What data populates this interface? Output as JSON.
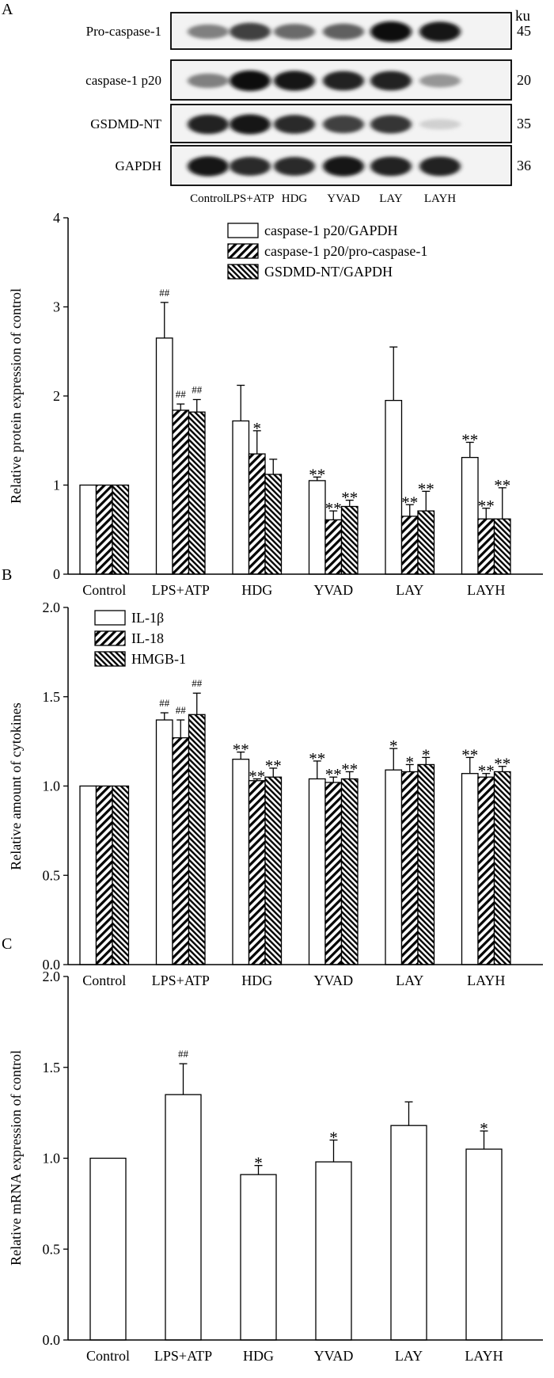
{
  "panels": {
    "A": "A",
    "B": "B",
    "C": "C"
  },
  "blot": {
    "ku_label": "ku",
    "rows": [
      {
        "label": "Pro-caspase-1",
        "ku": "45",
        "intensities": [
          0.45,
          0.75,
          0.55,
          0.6,
          1.0,
          0.95
        ]
      },
      {
        "label": "caspase-1 p20",
        "ku": "20",
        "intensities": [
          0.45,
          1.0,
          0.95,
          0.9,
          0.9,
          0.35
        ]
      },
      {
        "label": "GSDMD-NT",
        "ku": "35",
        "intensities": [
          0.9,
          0.95,
          0.85,
          0.75,
          0.8,
          0.08
        ]
      },
      {
        "label": "GAPDH",
        "ku": "36",
        "intensities": [
          0.95,
          0.85,
          0.85,
          0.95,
          0.9,
          0.9
        ]
      }
    ],
    "lanes": [
      "Control",
      "LPS+ATP",
      "HDG",
      "YVAD",
      "LAY",
      "LAYH"
    ]
  },
  "chart_data": [
    {
      "type": "bar",
      "panel": "A",
      "ylabel": "Relative protein expression of control",
      "ylim": [
        0,
        4
      ],
      "yticks": [
        "0",
        "1",
        "2",
        "3",
        "4"
      ],
      "categories": [
        "Control",
        "LPS+ATP",
        "HDG",
        "YVAD",
        "LAY",
        "LAYH"
      ],
      "series": [
        {
          "name": "caspase-1 p20/GAPDH",
          "pattern": "open",
          "values": [
            1.0,
            2.65,
            1.72,
            1.05,
            1.95,
            1.31
          ],
          "errors": [
            0,
            0.4,
            0.4,
            0.04,
            0.6,
            0.17
          ],
          "marks": [
            "",
            "##",
            "",
            "**",
            "",
            "**"
          ]
        },
        {
          "name": "caspase-1 p20/pro-caspase-1",
          "pattern": "diag-right",
          "values": [
            1.0,
            1.84,
            1.35,
            0.61,
            0.65,
            0.62
          ],
          "errors": [
            0,
            0.07,
            0.26,
            0.1,
            0.13,
            0.12
          ],
          "marks": [
            "",
            "##",
            "*",
            "**",
            "**",
            "**"
          ]
        },
        {
          "name": "GSDMD-NT/GAPDH",
          "pattern": "diag-left",
          "values": [
            1.0,
            1.82,
            1.12,
            0.76,
            0.71,
            0.62
          ],
          "errors": [
            0,
            0.14,
            0.17,
            0.07,
            0.22,
            0.35
          ],
          "marks": [
            "",
            "##",
            "",
            "**",
            "**",
            "**"
          ]
        }
      ]
    },
    {
      "type": "bar",
      "panel": "B",
      "ylabel": "Relative amount of cytokines",
      "ylim": [
        0,
        2.0
      ],
      "yticks": [
        "0.0",
        "0.5",
        "1.0",
        "1.5",
        "2.0"
      ],
      "categories": [
        "Control",
        "LPS+ATP",
        "HDG",
        "YVAD",
        "LAY",
        "LAYH"
      ],
      "series": [
        {
          "name": "IL-1β",
          "pattern": "open",
          "values": [
            1.0,
            1.37,
            1.15,
            1.04,
            1.09,
            1.07
          ],
          "errors": [
            0,
            0.04,
            0.04,
            0.1,
            0.12,
            0.09
          ],
          "marks": [
            "",
            "##",
            "**",
            "**",
            "*",
            "**"
          ]
        },
        {
          "name": "IL-18",
          "pattern": "diag-right",
          "values": [
            1.0,
            1.27,
            1.03,
            1.02,
            1.08,
            1.05
          ],
          "errors": [
            0,
            0.1,
            0.01,
            0.03,
            0.04,
            0.02
          ],
          "marks": [
            "",
            "##",
            "**",
            "**",
            "*",
            "**"
          ]
        },
        {
          "name": "HMGB-1",
          "pattern": "diag-left",
          "values": [
            1.0,
            1.4,
            1.05,
            1.04,
            1.12,
            1.08
          ],
          "errors": [
            0,
            0.12,
            0.05,
            0.04,
            0.04,
            0.03
          ],
          "marks": [
            "",
            "##",
            "**",
            "**",
            "*",
            "**"
          ]
        }
      ]
    },
    {
      "type": "bar",
      "panel": "C",
      "ylabel": "Relative mRNA expression of control",
      "ylim": [
        0,
        2.0
      ],
      "yticks": [
        "0.0",
        "0.5",
        "1.0",
        "1.5",
        "2.0"
      ],
      "categories": [
        "Control",
        "LPS+ATP",
        "HDG",
        "YVAD",
        "LAY",
        "LAYH"
      ],
      "series": [
        {
          "name": "mRNA",
          "pattern": "open",
          "values": [
            1.0,
            1.35,
            0.91,
            0.98,
            1.18,
            1.05
          ],
          "errors": [
            0,
            0.17,
            0.05,
            0.12,
            0.13,
            0.1
          ],
          "marks": [
            "",
            "##",
            "*",
            "*",
            "",
            "*"
          ]
        }
      ]
    }
  ]
}
